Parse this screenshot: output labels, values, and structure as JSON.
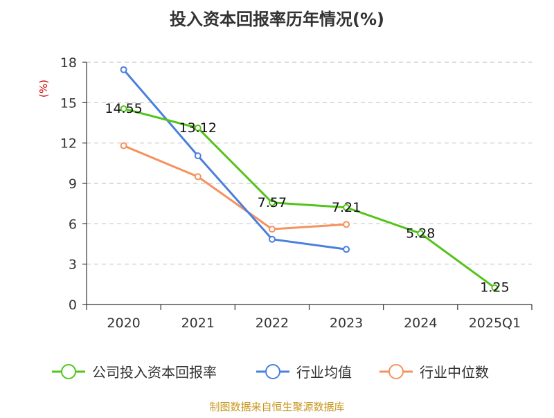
{
  "chart_data": {
    "type": "line",
    "title": "投入资本回报率历年情况(%)",
    "ylabel": "(%)",
    "xlabel": "",
    "categories": [
      "2020",
      "2021",
      "2022",
      "2023",
      "2024",
      "2025Q1"
    ],
    "yticks": [
      "0",
      "3",
      "6",
      "9",
      "12",
      "15",
      "18"
    ],
    "ylim": [
      0,
      18
    ],
    "grid": true,
    "legend_position": "bottom",
    "series": [
      {
        "name": "公司投入资本回报率",
        "color": "#52c41a",
        "values": [
          14.55,
          13.12,
          7.57,
          7.21,
          5.28,
          1.25
        ],
        "labels": [
          "14.55",
          "13.12",
          "7.57",
          "7.21",
          "5.28",
          "1.25"
        ]
      },
      {
        "name": "行业均值",
        "color": "#4a7fdc",
        "values": [
          17.45,
          11.05,
          4.85,
          4.1,
          null,
          null
        ]
      },
      {
        "name": "行业中位数",
        "color": "#f5925e",
        "values": [
          11.8,
          9.5,
          5.6,
          5.95,
          null,
          null
        ]
      }
    ]
  },
  "source": "制图数据来自恒生聚源数据库"
}
